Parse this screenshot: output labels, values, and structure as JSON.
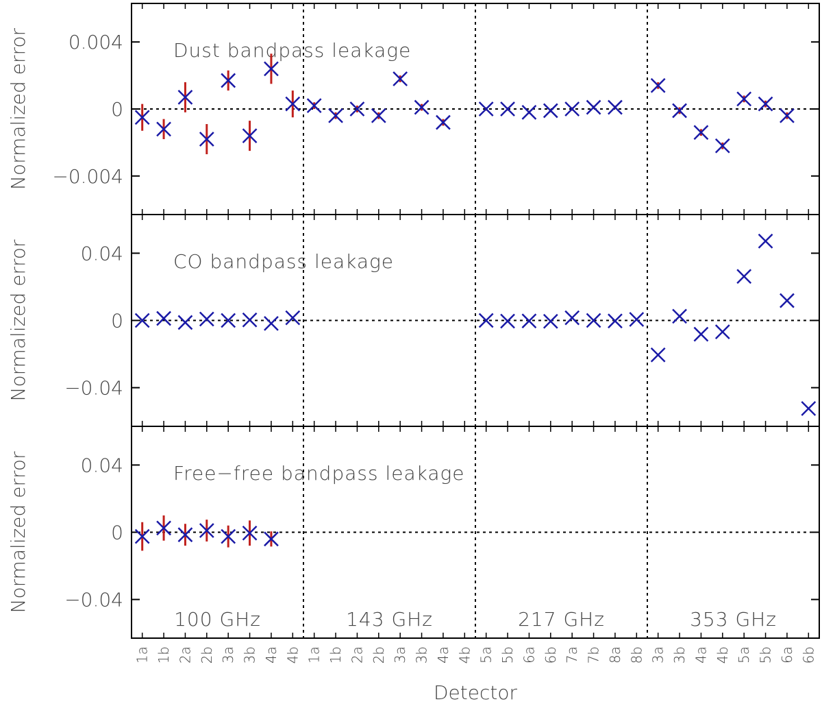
{
  "chart_data": {
    "type": "scatter",
    "xlabel": "Detector",
    "x_tick_labels": [
      "1a",
      "1b",
      "2a",
      "2b",
      "3a",
      "3b",
      "4a",
      "4b",
      "1a",
      "1b",
      "2a",
      "2b",
      "3a",
      "3b",
      "4a",
      "4b",
      "5a",
      "5b",
      "6a",
      "6b",
      "7a",
      "7b",
      "8a",
      "8b",
      "3a",
      "3b",
      "4a",
      "4b",
      "5a",
      "5b",
      "6a",
      "6b"
    ],
    "bands": [
      {
        "label": "100 GHz"
      },
      {
        "label": "143 GHz"
      },
      {
        "label": "217 GHz"
      },
      {
        "label": "353 GHz"
      }
    ],
    "grid": false,
    "marker_color": "#1a1aa6",
    "errorbar_color": "#c0201c",
    "panels": [
      {
        "title": "Dust bandpass leakage",
        "ylabel": "Normalized error",
        "ylim": [
          -0.0063,
          0.0063
        ],
        "y_tick_labels": [
          "0.004",
          "0",
          "−0.004"
        ],
        "y_ticks": [
          0.004,
          0,
          -0.004
        ],
        "points": [
          {
            "x": 0,
            "y": -0.0005,
            "err": 0.0008
          },
          {
            "x": 1,
            "y": -0.0012,
            "err": 0.0006
          },
          {
            "x": 2,
            "y": 0.0007,
            "err": 0.0009
          },
          {
            "x": 3,
            "y": -0.0018,
            "err": 0.0009
          },
          {
            "x": 4,
            "y": 0.0017,
            "err": 0.0006
          },
          {
            "x": 5,
            "y": -0.0016,
            "err": 0.0009
          },
          {
            "x": 6,
            "y": 0.0024,
            "err": 0.0009
          },
          {
            "x": 7,
            "y": 0.0003,
            "err": 0.0008
          },
          {
            "x": 8,
            "y": 0.0002,
            "err": 0.0002
          },
          {
            "x": 9,
            "y": -0.0004,
            "err": 0.0002
          },
          {
            "x": 10,
            "y": 0.0,
            "err": 0.0002
          },
          {
            "x": 11,
            "y": -0.0004,
            "err": 0.0002
          },
          {
            "x": 12,
            "y": 0.0018,
            "err": 0.0002
          },
          {
            "x": 13,
            "y": 0.0001,
            "err": 0.0002
          },
          {
            "x": 14,
            "y": -0.0008,
            "err": 0.0002
          },
          {
            "x": 16,
            "y": 0.0,
            "err": 0.0001
          },
          {
            "x": 17,
            "y": 0.0,
            "err": 0.0001
          },
          {
            "x": 18,
            "y": -0.0002,
            "err": 0.0001
          },
          {
            "x": 19,
            "y": -0.0001,
            "err": 0.0001
          },
          {
            "x": 20,
            "y": 0.0,
            "err": 0.0001
          },
          {
            "x": 21,
            "y": 0.0001,
            "err": 0.0001
          },
          {
            "x": 22,
            "y": 0.0001,
            "err": 0.0001
          },
          {
            "x": 24,
            "y": 0.0014,
            "err": 0.0002
          },
          {
            "x": 25,
            "y": -0.0001,
            "err": 0.0002
          },
          {
            "x": 26,
            "y": -0.0014,
            "err": 0.0002
          },
          {
            "x": 27,
            "y": -0.0022,
            "err": 0.0002
          },
          {
            "x": 28,
            "y": 0.0006,
            "err": 0.0002
          },
          {
            "x": 29,
            "y": 0.0003,
            "err": 0.0002
          },
          {
            "x": 30,
            "y": -0.0004,
            "err": 0.0002
          }
        ]
      },
      {
        "title": "CO bandpass leakage",
        "ylabel": "Normalized error",
        "ylim": [
          -0.063,
          0.063
        ],
        "y_tick_labels": [
          "0.04",
          "0",
          "−0.04"
        ],
        "y_ticks": [
          0.04,
          0,
          -0.04
        ],
        "points": [
          {
            "x": 0,
            "y": 0.0,
            "err": 0
          },
          {
            "x": 1,
            "y": 0.0012,
            "err": 0
          },
          {
            "x": 2,
            "y": -0.0012,
            "err": 0
          },
          {
            "x": 3,
            "y": 0.0008,
            "err": 0
          },
          {
            "x": 4,
            "y": 0.0,
            "err": 0
          },
          {
            "x": 5,
            "y": 0.0003,
            "err": 0
          },
          {
            "x": 6,
            "y": -0.0018,
            "err": 0
          },
          {
            "x": 7,
            "y": 0.0016,
            "err": 0
          },
          {
            "x": 16,
            "y": 0.0,
            "err": 0
          },
          {
            "x": 17,
            "y": -0.0004,
            "err": 0
          },
          {
            "x": 18,
            "y": -0.0003,
            "err": 0
          },
          {
            "x": 19,
            "y": -0.0005,
            "err": 0
          },
          {
            "x": 20,
            "y": 0.0016,
            "err": 0
          },
          {
            "x": 21,
            "y": 0.0,
            "err": 0
          },
          {
            "x": 22,
            "y": -0.0003,
            "err": 0
          },
          {
            "x": 23,
            "y": 0.0006,
            "err": 0
          },
          {
            "x": 24,
            "y": -0.0205,
            "err": 0
          },
          {
            "x": 25,
            "y": 0.0025,
            "err": 0
          },
          {
            "x": 26,
            "y": -0.0082,
            "err": 0
          },
          {
            "x": 27,
            "y": -0.0068,
            "err": 0
          },
          {
            "x": 28,
            "y": 0.0262,
            "err": 0
          },
          {
            "x": 29,
            "y": 0.0472,
            "err": 0
          },
          {
            "x": 30,
            "y": 0.0118,
            "err": 0
          },
          {
            "x": 31,
            "y": -0.0524,
            "err": 0
          }
        ]
      },
      {
        "title": "Free−free bandpass leakage",
        "ylabel": "Normalized error",
        "ylim": [
          -0.063,
          0.063
        ],
        "y_tick_labels": [
          "0.04",
          "0",
          "−0.04"
        ],
        "y_ticks": [
          0.04,
          0,
          -0.04
        ],
        "points": [
          {
            "x": 0,
            "y": -0.0025,
            "err": 0.0085
          },
          {
            "x": 1,
            "y": 0.0025,
            "err": 0.0075
          },
          {
            "x": 2,
            "y": -0.0015,
            "err": 0.0065
          },
          {
            "x": 3,
            "y": 0.001,
            "err": 0.0065
          },
          {
            "x": 4,
            "y": -0.0025,
            "err": 0.0065
          },
          {
            "x": 5,
            "y": -0.0005,
            "err": 0.0075
          },
          {
            "x": 6,
            "y": -0.004,
            "err": 0.0045
          }
        ]
      }
    ]
  }
}
